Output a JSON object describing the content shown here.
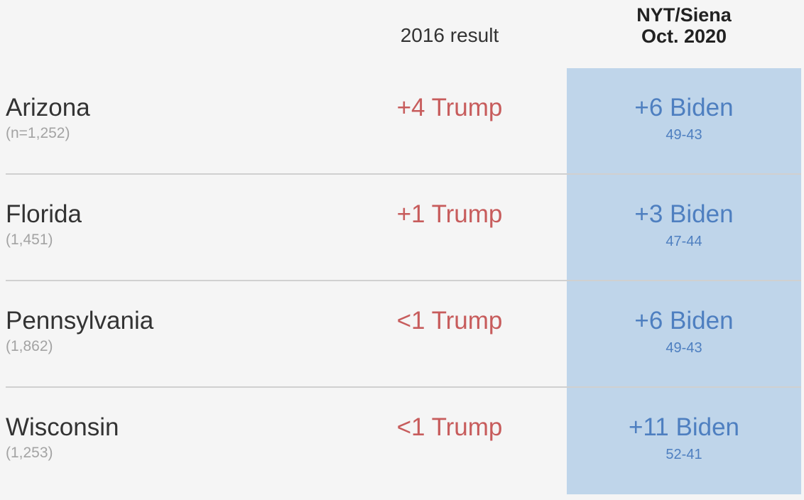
{
  "header": {
    "col_2016": "2016 result",
    "col_poll_line1": "NYT/Siena",
    "col_poll_line2": "Oct. 2020"
  },
  "colors": {
    "background": "#f5f5f5",
    "trump_red": "#c75c5c",
    "biden_blue": "#4e7fc0",
    "poll_cell_bg": "#bfd5ea",
    "rule": "#d0d0d0"
  },
  "chart_data": {
    "type": "table",
    "columns": [
      "",
      "2016 result",
      "NYT/Siena Oct. 2020"
    ],
    "rows": [
      {
        "state": "Arizona",
        "n": "(n=1,252)",
        "result_2016": "+4 Trump",
        "poll_margin": "+6 Biden",
        "poll_split": "49-43"
      },
      {
        "state": "Florida",
        "n": "(1,451)",
        "result_2016": "+1 Trump",
        "poll_margin": "+3 Biden",
        "poll_split": "47-44"
      },
      {
        "state": "Pennsylvania",
        "n": "(1,862)",
        "result_2016": "<1 Trump",
        "poll_margin": "+6 Biden",
        "poll_split": "49-43"
      },
      {
        "state": "Wisconsin",
        "n": "(1,253)",
        "result_2016": "<1 Trump",
        "poll_margin": "+11 Biden",
        "poll_split": "52-41"
      }
    ]
  }
}
